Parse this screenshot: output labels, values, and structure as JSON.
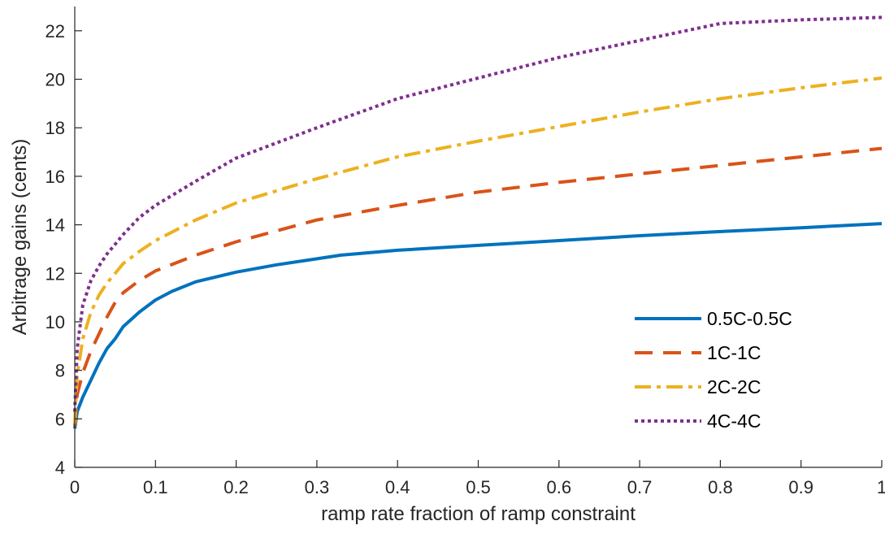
{
  "chart_data": {
    "type": "line",
    "xlabel": "ramp rate fraction of ramp constraint",
    "ylabel": "Arbitrage gains (cents)",
    "xlim": [
      0,
      1
    ],
    "ylim": [
      4,
      23
    ],
    "x_ticks": [
      0,
      0.1,
      0.2,
      0.3,
      0.4,
      0.5,
      0.6,
      0.7,
      0.8,
      0.9,
      1
    ],
    "x_tick_labels": [
      "0",
      "0.1",
      "0.2",
      "0.3",
      "0.4",
      "0.5",
      "0.6",
      "0.7",
      "0.8",
      "0.9",
      "1"
    ],
    "y_ticks": [
      4,
      6,
      8,
      10,
      12,
      14,
      16,
      18,
      20,
      22
    ],
    "y_tick_labels": [
      "4",
      "6",
      "8",
      "10",
      "12",
      "14",
      "16",
      "18",
      "20",
      "22"
    ],
    "grid": false,
    "legend_position": "lower-right",
    "series": [
      {
        "name": "0.5C-0.5C",
        "color": "#0072bd",
        "style": "solid",
        "x": [
          0,
          0.003,
          0.01,
          0.02,
          0.03,
          0.04,
          0.05,
          0.06,
          0.07,
          0.08,
          0.1,
          0.12,
          0.15,
          0.2,
          0.25,
          0.3,
          0.33,
          0.4,
          0.5,
          0.6,
          0.7,
          0.8,
          0.9,
          1
        ],
        "y": [
          5.6,
          6.3,
          6.9,
          7.6,
          8.3,
          8.9,
          9.3,
          9.8,
          10.1,
          10.4,
          10.9,
          11.25,
          11.65,
          12.05,
          12.35,
          12.6,
          12.75,
          12.95,
          13.15,
          13.35,
          13.55,
          13.72,
          13.88,
          14.05
        ]
      },
      {
        "name": "1C-1C",
        "color": "#d95319",
        "style": "dashed",
        "x": [
          0,
          0.003,
          0.01,
          0.02,
          0.03,
          0.04,
          0.05,
          0.06,
          0.08,
          0.1,
          0.15,
          0.2,
          0.3,
          0.4,
          0.5,
          0.6,
          0.7,
          0.8,
          0.9,
          1
        ],
        "y": [
          5.7,
          7.0,
          7.9,
          8.8,
          9.5,
          10.2,
          10.8,
          11.2,
          11.7,
          12.1,
          12.75,
          13.3,
          14.2,
          14.8,
          15.35,
          15.75,
          16.1,
          16.45,
          16.8,
          17.15
        ]
      },
      {
        "name": "2C-2C",
        "color": "#edb120",
        "style": "dashdot",
        "x": [
          0,
          0.003,
          0.01,
          0.02,
          0.03,
          0.04,
          0.05,
          0.06,
          0.08,
          0.1,
          0.15,
          0.2,
          0.3,
          0.4,
          0.5,
          0.6,
          0.7,
          0.8,
          0.9,
          1
        ],
        "y": [
          5.8,
          7.8,
          9.3,
          10.4,
          11.1,
          11.6,
          12.0,
          12.4,
          12.9,
          13.35,
          14.2,
          14.9,
          15.9,
          16.8,
          17.45,
          18.05,
          18.65,
          19.2,
          19.65,
          20.05
        ]
      },
      {
        "name": "4C-4C",
        "color": "#7e2f8e",
        "style": "dotted",
        "x": [
          0,
          0.003,
          0.01,
          0.02,
          0.03,
          0.04,
          0.05,
          0.06,
          0.08,
          0.1,
          0.15,
          0.2,
          0.3,
          0.4,
          0.5,
          0.6,
          0.7,
          0.8,
          0.9,
          1
        ],
        "y": [
          6.3,
          8.9,
          10.7,
          11.7,
          12.3,
          12.8,
          13.2,
          13.6,
          14.3,
          14.8,
          15.8,
          16.75,
          18.0,
          19.2,
          20.05,
          20.9,
          21.6,
          22.3,
          22.45,
          22.55
        ]
      }
    ]
  }
}
